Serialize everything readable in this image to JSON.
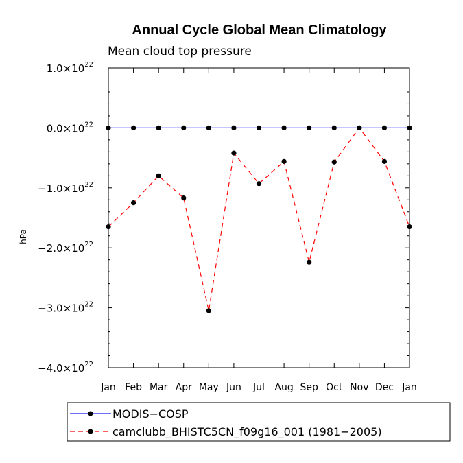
{
  "chart_data": {
    "type": "line",
    "title": "Annual Cycle Global Mean Climatology",
    "subtitle": "Mean cloud top pressure",
    "ylabel": "hPa",
    "xlabel": "",
    "categories": [
      "Jan",
      "Feb",
      "Mar",
      "Apr",
      "May",
      "Jun",
      "Jul",
      "Aug",
      "Sep",
      "Oct",
      "Nov",
      "Dec",
      "Jan"
    ],
    "ylim": [
      -4e+22,
      1e+22
    ],
    "yticks": [
      {
        "value": 1e+22,
        "mantissa": "1.0",
        "exp": "22"
      },
      {
        "value": 0.0,
        "mantissa": "0.0",
        "exp": "22"
      },
      {
        "value": -1e+22,
        "mantissa": "−1.0",
        "exp": "22"
      },
      {
        "value": -2e+22,
        "mantissa": "−2.0",
        "exp": "22"
      },
      {
        "value": -3e+22,
        "mantissa": "−3.0",
        "exp": "22"
      },
      {
        "value": -4e+22,
        "mantissa": "−4.0",
        "exp": "22"
      }
    ],
    "series": [
      {
        "name": "MODIS−COSP",
        "color": "#1a1aff",
        "dash": "solid",
        "values": [
          0,
          0,
          0,
          0,
          0,
          0,
          0,
          0,
          0,
          0,
          0,
          0,
          0
        ]
      },
      {
        "name": "camclubb_BHISTC5CN_f09g16_001 (1981−2005)",
        "color": "#ff0000",
        "dash": "dashed",
        "values": [
          -1.65e+22,
          -1.25e+22,
          -8e+21,
          -1.17e+22,
          -3.05e+22,
          -4.2e+21,
          -9.3e+21,
          -5.6e+21,
          -2.24e+22,
          -5.7e+21,
          0.0,
          -5.6e+21,
          -1.65e+22
        ]
      }
    ],
    "legend_position": "bottom-left"
  }
}
